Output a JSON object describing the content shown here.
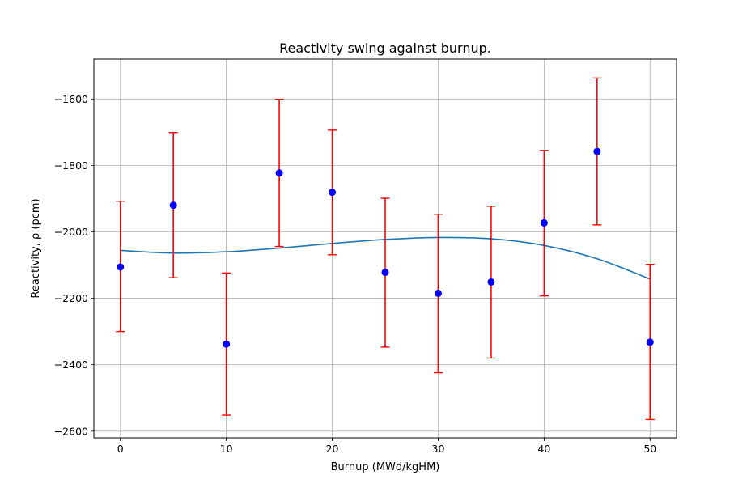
{
  "chart_data": {
    "type": "scatter",
    "title": "Reactivity swing against burnup.",
    "xlabel": "Burnup (MWd/kgHM)",
    "ylabel": "Reactivity, ρ (pcm)",
    "xlim": [
      -2.5,
      52.5
    ],
    "ylim": [
      -2620,
      -1480
    ],
    "xticks": [
      0,
      10,
      20,
      30,
      40,
      50
    ],
    "yticks": [
      -2600,
      -2400,
      -2200,
      -2000,
      -1800,
      -1600
    ],
    "xtick_labels": [
      "0",
      "10",
      "20",
      "30",
      "40",
      "50"
    ],
    "ytick_labels": [
      "−2600",
      "−2400",
      "−2200",
      "−2000",
      "−1800",
      "−1600"
    ],
    "grid": true,
    "points": {
      "x": [
        0,
        5,
        10,
        15,
        20,
        25,
        30,
        35,
        40,
        45,
        50
      ],
      "y": [
        -2106,
        -1920,
        -2338,
        -1823,
        -1881,
        -2122,
        -2185,
        -2151,
        -1973,
        -1758,
        -2332
      ],
      "err_low": [
        -2300,
        -2138,
        -2552,
        -2044,
        -2069,
        -2347,
        -2424,
        -2380,
        -2193,
        -1979,
        -2565
      ],
      "err_high": [
        -1908,
        -1701,
        -2124,
        -1601,
        -1694,
        -1899,
        -1947,
        -1923,
        -1755,
        -1537,
        -2098
      ],
      "marker_color": "#0000ff",
      "errorbar_color": "#ff0000"
    },
    "fit_curve": {
      "x": [
        0,
        5,
        10,
        15,
        20,
        25,
        30,
        35,
        40,
        45,
        50
      ],
      "y": [
        -2056,
        -2064,
        -2060,
        -2049,
        -2035,
        -2023,
        -2017,
        -2021,
        -2041,
        -2081,
        -2142
      ],
      "color": "#1f77b4"
    }
  }
}
